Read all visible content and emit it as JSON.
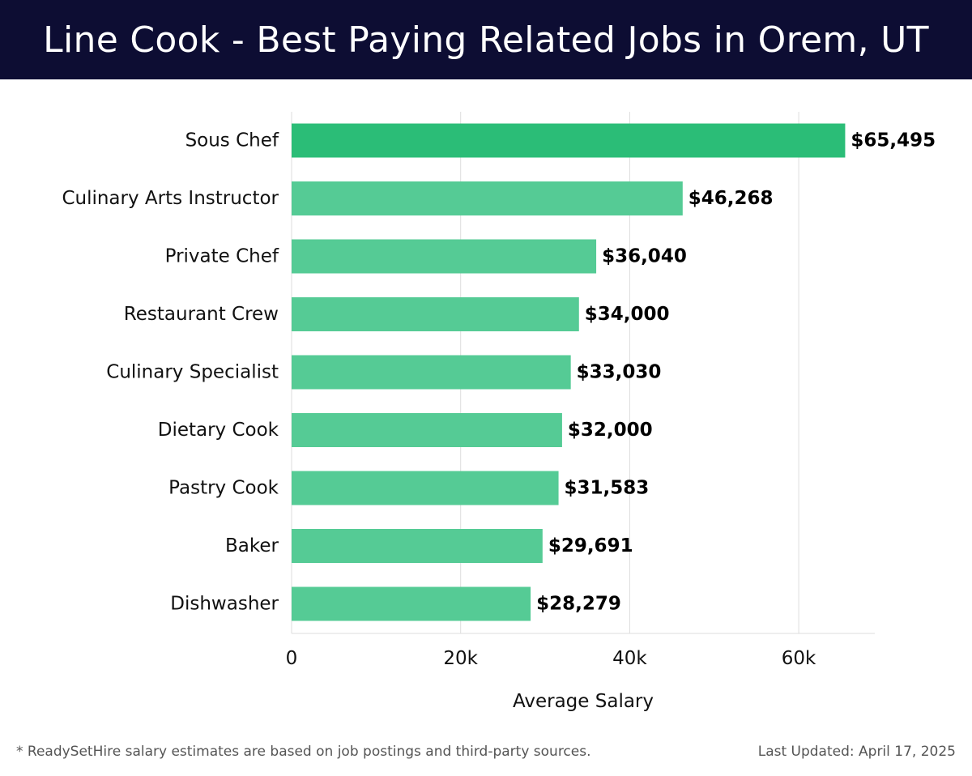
{
  "header": {
    "title": "Line Cook - Best Paying Related Jobs in Orem, UT"
  },
  "colors": {
    "header_bg": "#0d0d33",
    "bar_top": "#2bbd77",
    "bar_other": "#55cb95",
    "grid": "#dddddd"
  },
  "chart_data": {
    "type": "bar",
    "orientation": "horizontal",
    "categories": [
      "Sous Chef",
      "Culinary Arts Instructor",
      "Private Chef",
      "Restaurant Crew",
      "Culinary Specialist",
      "Dietary Cook",
      "Pastry Cook",
      "Baker",
      "Dishwasher"
    ],
    "values": [
      65495,
      46268,
      36040,
      34000,
      33030,
      32000,
      31583,
      29691,
      28279
    ],
    "value_labels": [
      "$65,495",
      "$46,268",
      "$36,040",
      "$34,000",
      "$33,030",
      "$32,000",
      "$31,583",
      "$29,691",
      "$28,279"
    ],
    "xlabel": "Average Salary",
    "xlim": [
      0,
      69000
    ],
    "xticks": [
      0,
      20000,
      40000,
      60000
    ],
    "xtick_labels": [
      "0",
      "20k",
      "40k",
      "60k"
    ],
    "grid": true
  },
  "footer": {
    "note": "* ReadySetHire salary estimates are based on job postings and third-party sources.",
    "updated": "Last Updated: April 17, 2025"
  }
}
